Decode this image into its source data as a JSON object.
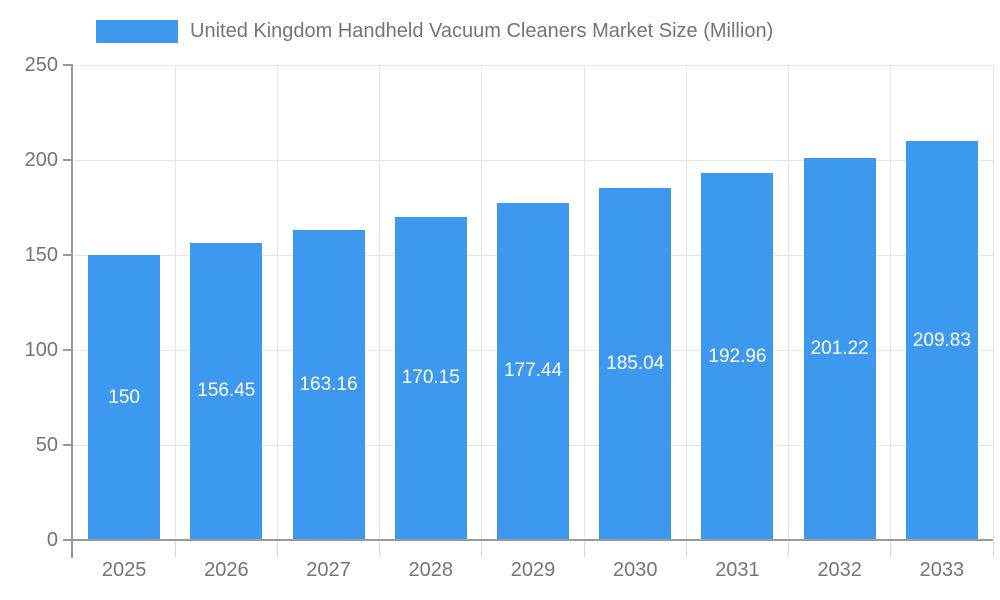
{
  "legend": {
    "series_label": "United Kingdom Handheld Vacuum Cleaners Market Size (Million)"
  },
  "chart_data": {
    "type": "bar",
    "title": "United Kingdom Handheld Vacuum Cleaners Market Size (Million)",
    "categories": [
      "2025",
      "2026",
      "2027",
      "2028",
      "2029",
      "2030",
      "2031",
      "2032",
      "2033"
    ],
    "series": [
      {
        "name": "United Kingdom Handheld Vacuum Cleaners Market Size (Million)",
        "values": [
          150,
          156.45,
          163.16,
          170.15,
          177.44,
          185.04,
          192.96,
          201.22,
          209.83
        ],
        "value_labels": [
          "150",
          "156.45",
          "163.16",
          "170.15",
          "177.44",
          "185.04",
          "192.96",
          "201.22",
          "209.83"
        ]
      }
    ],
    "xlabel": "",
    "ylabel": "",
    "ylim": [
      0,
      250
    ],
    "yticks": [
      0,
      50,
      100,
      150,
      200,
      250
    ],
    "grid": true,
    "legend_position": "top",
    "value_labels_position": "center-of-bar",
    "colors": {
      "bar": "#3d99ef",
      "bar_label_text": "#ffffff",
      "axis_text": "#757575",
      "legend_text": "#757575",
      "grid_line": "#e6e6e6",
      "boundary_tick": "#d9d9d9",
      "axis_line": "#999999",
      "background": "#ffffff"
    }
  }
}
